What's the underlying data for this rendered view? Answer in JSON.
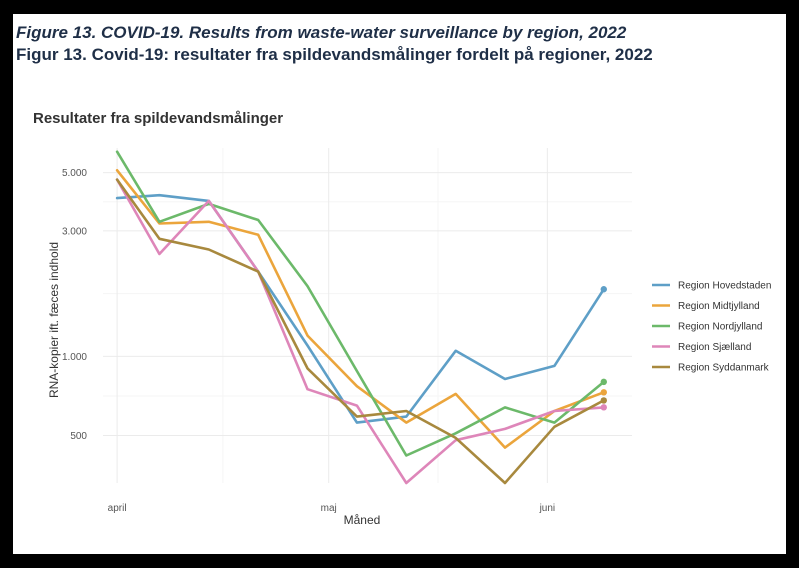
{
  "figure": {
    "title_en": "Figure 13. COVID-19. Results from waste-water surveillance by region, 2022",
    "title_da": "Figur 13. Covid-19: resultater fra spildevandsmålinger fordelt på regioner, 2022"
  },
  "chart_data": {
    "type": "line",
    "title": "Resultater fra spildevandsmålinger",
    "xlabel": "Måned",
    "ylabel": "RNA-kopier ift. fæces indhold",
    "x_ticks": [
      {
        "label": "april",
        "date": "2022-04-01"
      },
      {
        "label": "maj",
        "date": "2022-05-01"
      },
      {
        "label": "juni",
        "date": "2022-06-01"
      }
    ],
    "y_scale": "log",
    "y_ticks": [
      {
        "label": "500",
        "value": 500
      },
      {
        "label": "1.000",
        "value": 1000
      },
      {
        "label": "3.000",
        "value": 3000
      },
      {
        "label": "5.000",
        "value": 5000
      }
    ],
    "ylim": [
      330,
      6200
    ],
    "xlim": [
      "2022-03-30",
      "2022-06-13"
    ],
    "grid": true,
    "legend_position": "right",
    "x": [
      "2022-04-01",
      "2022-04-07",
      "2022-04-14",
      "2022-04-21",
      "2022-04-28",
      "2022-05-05",
      "2022-05-12",
      "2022-05-19",
      "2022-05-26",
      "2022-06-02",
      "2022-06-09"
    ],
    "series": [
      {
        "name": "Region Hovedstaden",
        "color": "#5e9fc7",
        "values": [
          4000,
          4100,
          3900,
          2100,
          1100,
          560,
          590,
          1050,
          820,
          920,
          1800
        ]
      },
      {
        "name": "Region Midtjylland",
        "color": "#eba53c",
        "values": [
          5100,
          3200,
          3250,
          2900,
          1200,
          770,
          560,
          720,
          450,
          620,
          730
        ]
      },
      {
        "name": "Region Nordjylland",
        "color": "#6cb96a",
        "values": [
          6000,
          3250,
          3800,
          3300,
          1850,
          880,
          420,
          510,
          640,
          560,
          800
        ]
      },
      {
        "name": "Region Sjælland",
        "color": "#de86b9",
        "values": [
          4700,
          2450,
          3900,
          2100,
          750,
          650,
          330,
          480,
          530,
          620,
          640
        ]
      },
      {
        "name": "Region Syddanmark",
        "color": "#a8893e",
        "values": [
          4700,
          2800,
          2550,
          2100,
          900,
          590,
          620,
          490,
          330,
          540,
          680
        ]
      }
    ]
  }
}
